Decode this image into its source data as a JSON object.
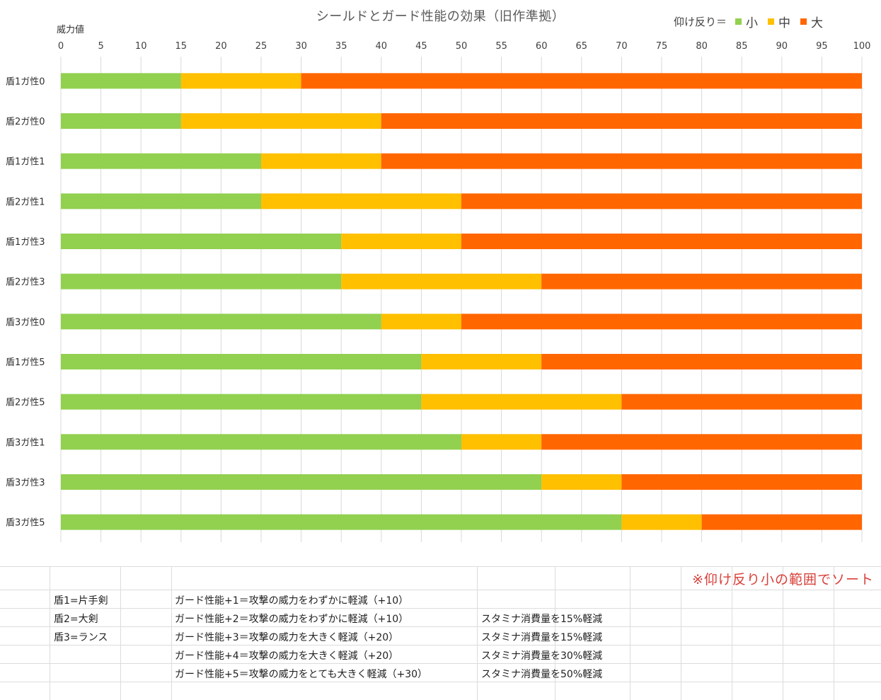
{
  "chart_data": {
    "type": "bar",
    "orientation": "horizontal",
    "stacked": true,
    "title": "シールドとガード性能の効果（旧作準拠）",
    "xlabel": "威力値",
    "ylabel": "",
    "xlim": [
      0,
      100
    ],
    "x_ticks": [
      0,
      5,
      10,
      15,
      20,
      25,
      30,
      35,
      40,
      45,
      50,
      55,
      60,
      65,
      70,
      75,
      80,
      85,
      90,
      95,
      100
    ],
    "grid": true,
    "legend_prefix": "仰け反り＝",
    "legend_position": "top-right",
    "categories": [
      "盾1ガ性0",
      "盾2ガ性0",
      "盾1ガ性1",
      "盾2ガ性1",
      "盾1ガ性3",
      "盾2ガ性3",
      "盾3ガ性0",
      "盾1ガ性5",
      "盾2ガ性5",
      "盾3ガ性1",
      "盾3ガ性3",
      "盾3ガ性5"
    ],
    "series": [
      {
        "name": "小",
        "color": "#92d050",
        "values": [
          15,
          15,
          25,
          25,
          35,
          35,
          40,
          45,
          45,
          50,
          60,
          70
        ]
      },
      {
        "name": "中",
        "color": "#ffc000",
        "values": [
          15,
          25,
          15,
          25,
          15,
          25,
          10,
          15,
          25,
          10,
          10,
          10
        ]
      },
      {
        "name": "大",
        "color": "#ff6600",
        "values": [
          70,
          60,
          60,
          50,
          50,
          40,
          50,
          40,
          30,
          40,
          30,
          20
        ]
      }
    ]
  },
  "sheet": {
    "sort_note": "※仰け反り小の範囲でソート",
    "shields": [
      "盾1=片手剣",
      "盾2=大剣",
      "盾3=ランス"
    ],
    "guard_levels": [
      "ガード性能+1＝攻撃の威力をわずかに軽減（+10）",
      "ガード性能+2＝攻撃の威力をわずかに軽減（+10）",
      "ガード性能+3＝攻撃の威力を大きく軽減（+20）",
      "ガード性能+4＝攻撃の威力を大きく軽減（+20）",
      "ガード性能+5＝攻撃の威力をとても大きく軽減（+30）"
    ],
    "stamina_notes": [
      "",
      "スタミナ消費量を15%軽減",
      "スタミナ消費量を15%軽減",
      "スタミナ消費量を30%軽減",
      "スタミナ消費量を50%軽減"
    ]
  }
}
